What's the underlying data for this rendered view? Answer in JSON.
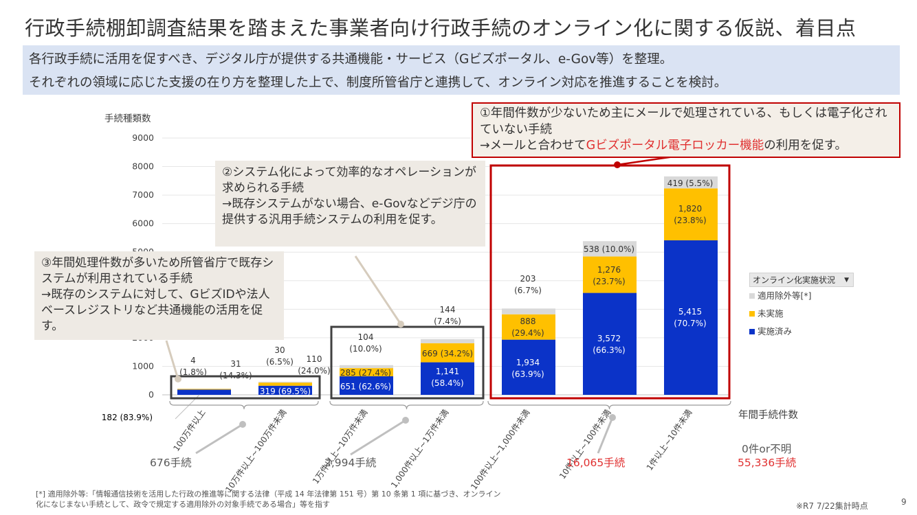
{
  "title": "行政手続棚卸調査結果を踏まえた事業者向け行政手続のオンライン化に関する仮説、着目点",
  "banner": {
    "line1": "各行政手続に活用を促すべき、デジタル庁が提供する共通機能・サービス（Gビズポータル、e-Gov等）を整理。",
    "line2": "それぞれの領域に応じた支援の在り方を整理した上で、制度所管省庁と連携して、オンライン対応を推進することを検討。"
  },
  "callouts": {
    "c1": {
      "part1": "①年間件数が少ないため主にメールで処理されている、もしくは電子化されていない手続",
      "part2": "→メールと合わせて",
      "highlight": "Gビズポータル電子ロッカー機能",
      "part3": "の利用を促す。",
      "border_color": "#c00000",
      "highlight_color": "#e03030"
    },
    "c2": "②システム化によって効率的なオペレーションが求められる手続\n→既存システムがない場合、e-Govなどデジ庁の提供する汎用手続システムの利用を促す。",
    "c3": "③年間処理件数が多いため所管省庁で既存システムが利用されている手続\n→既存のシステムに対して、GビズIDや法人ベースレジストリなど共通機能の活用を促す。"
  },
  "legend": {
    "header": "オンライン化実施状況",
    "items": [
      {
        "label": "適用除外等[*]",
        "color": "#d9d9d9"
      },
      {
        "label": "未実施",
        "color": "#ffc000"
      },
      {
        "label": "実施済み",
        "color": "#0b33c8"
      }
    ]
  },
  "group_totals": [
    {
      "label": "676手続",
      "color": "#595959"
    },
    {
      "label": "2,994手続",
      "color": "#595959"
    },
    {
      "label": "16,065手続",
      "color": "#e03030"
    },
    {
      "label": "0件or不明",
      "color": "#595959"
    },
    {
      "label": "55,336手続",
      "color": "#e03030"
    }
  ],
  "chart_data": {
    "type": "bar",
    "stacked": true,
    "ylabel": "手続種類数",
    "xlabel": "年間手続件数",
    "ylim": [
      0,
      9000
    ],
    "yticks": [
      0,
      1000,
      2000,
      3000,
      4000,
      5000,
      6000,
      7000,
      8000,
      9000
    ],
    "categories": [
      "100万件以上",
      "10万件以上~100万件未満",
      "1万件以上~10万件未満",
      "1,000件以上~1万件未満",
      "100件以上~1,000件未満",
      "10件以上~100件未満",
      "1件以上~10件未満"
    ],
    "series": [
      {
        "name": "実施済み",
        "color": "#0b33c8",
        "values": [
          182,
          319,
          651,
          1141,
          1934,
          3572,
          5415
        ],
        "labels": [
          "182 (83.9%)",
          "319 (69.5%)",
          "651 (62.6%)",
          "1,141\n(58.4%)",
          "1,934\n(63.9%)",
          "3,572\n(66.3%)",
          "5,415\n(70.7%)"
        ]
      },
      {
        "name": "未実施",
        "color": "#ffc000",
        "values": [
          31,
          110,
          285,
          669,
          888,
          1276,
          1820
        ],
        "labels": [
          "31\n(14.3%)",
          "110\n(24.0%)",
          "285 (27.4%)",
          "669 (34.2%)",
          "888\n(29.4%)",
          "1,276\n(23.7%)",
          "1,820\n(23.8%)"
        ]
      },
      {
        "name": "適用除外等[*]",
        "color": "#d9d9d9",
        "values": [
          4,
          30,
          104,
          144,
          203,
          538,
          419
        ],
        "labels": [
          "4\n(1.8%)",
          "30\n(6.5%)",
          "104\n(10.0%)",
          "144\n(7.4%)",
          "203\n(6.7%)",
          "538 (10.0%)",
          "419 (5.5%)"
        ]
      }
    ]
  },
  "footnote": "[*] 適用除外等:「情報通信技術を活用した行政の推進等に関する法律（平成 14 年法律第 151 号）第 10 条第 1 項に基づき、オンライン化になじまない手続として、政令で規定する適用除外の対象手続である場合」等を指す",
  "as_of": "※R7 7/22集計時点",
  "page_number": "9"
}
